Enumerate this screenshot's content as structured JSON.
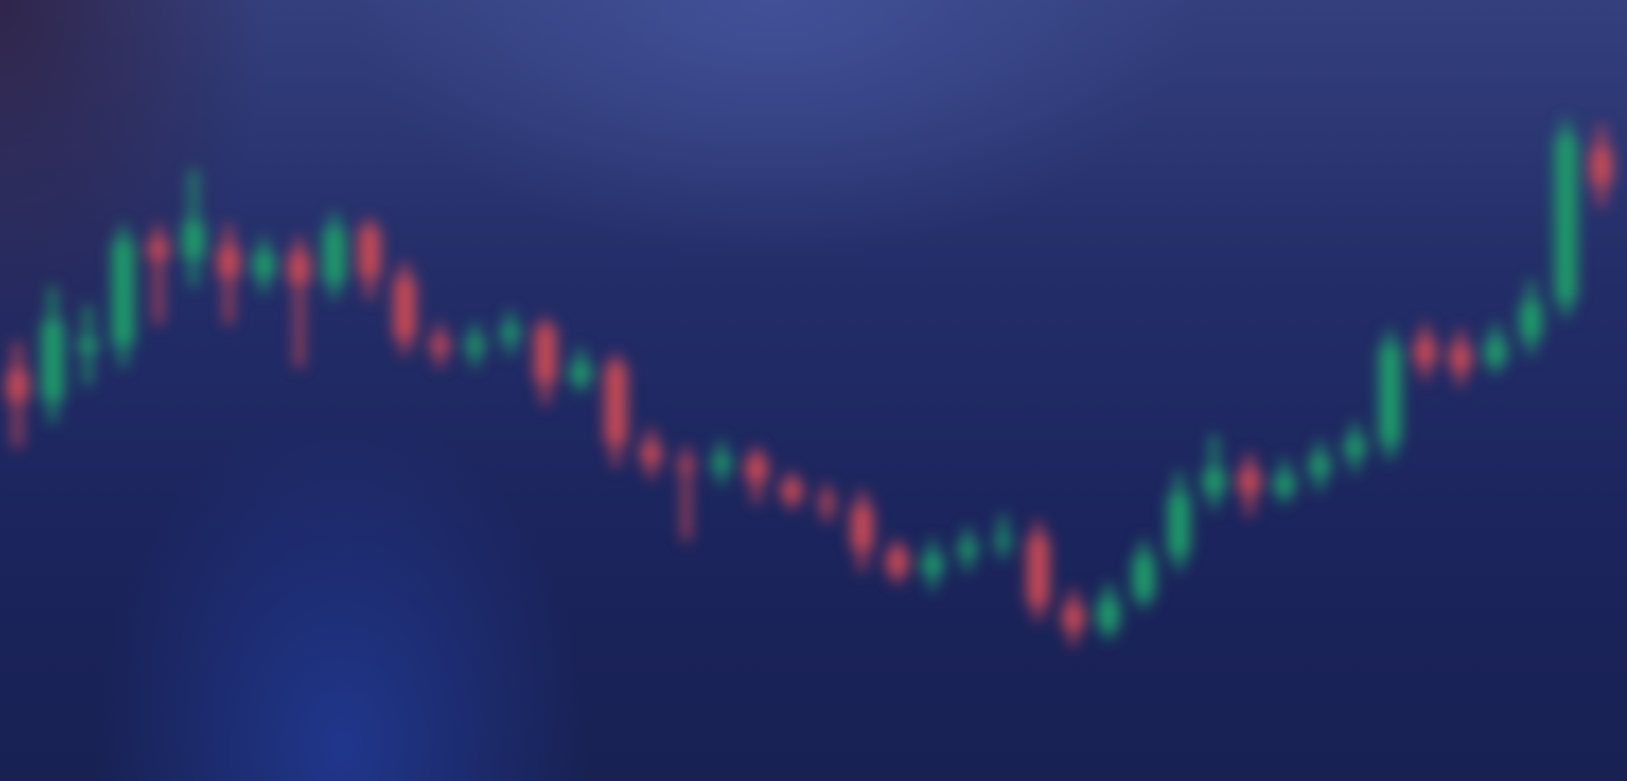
{
  "chart_data": {
    "type": "candlestick",
    "title": "",
    "xlabel": "",
    "ylabel": "",
    "grid": false,
    "legend": "none",
    "ylim": [
      0,
      100
    ],
    "up_color": "#1f9e6a",
    "down_color": "#c94a55",
    "background_color": "#1c2560",
    "candles": [
      {
        "x": 1,
        "open": 52,
        "close": 47,
        "high": 56,
        "low": 40
      },
      {
        "x": 2,
        "open": 47,
        "close": 60,
        "high": 65,
        "low": 44
      },
      {
        "x": 3,
        "open": 55,
        "close": 57,
        "high": 62,
        "low": 50
      },
      {
        "x": 4,
        "open": 56,
        "close": 73,
        "high": 75,
        "low": 53
      },
      {
        "x": 5,
        "open": 73,
        "close": 70,
        "high": 75,
        "low": 60
      },
      {
        "x": 6,
        "open": 70,
        "close": 76,
        "high": 84,
        "low": 66
      },
      {
        "x": 7,
        "open": 72,
        "close": 67,
        "high": 75,
        "low": 60
      },
      {
        "x": 8,
        "open": 67,
        "close": 71,
        "high": 73,
        "low": 65
      },
      {
        "x": 9,
        "open": 71,
        "close": 66,
        "high": 73,
        "low": 53
      },
      {
        "x": 10,
        "open": 66,
        "close": 75,
        "high": 77,
        "low": 64
      },
      {
        "x": 11,
        "open": 75,
        "close": 67,
        "high": 76,
        "low": 64
      },
      {
        "x": 12,
        "open": 67,
        "close": 57,
        "high": 69,
        "low": 55
      },
      {
        "x": 13,
        "open": 57,
        "close": 55,
        "high": 59,
        "low": 53
      },
      {
        "x": 14,
        "open": 55,
        "close": 57,
        "high": 59,
        "low": 53
      },
      {
        "x": 15,
        "open": 57,
        "close": 59,
        "high": 61,
        "low": 55
      },
      {
        "x": 16,
        "open": 59,
        "close": 50,
        "high": 60,
        "low": 47
      },
      {
        "x": 17,
        "open": 50,
        "close": 53,
        "high": 55,
        "low": 49
      },
      {
        "x": 18,
        "open": 53,
        "close": 40,
        "high": 54,
        "low": 37
      },
      {
        "x": 19,
        "open": 40,
        "close": 37,
        "high": 42,
        "low": 35
      },
      {
        "x": 20,
        "open": 37,
        "close": 36,
        "high": 39,
        "low": 25
      },
      {
        "x": 21,
        "open": 36,
        "close": 38,
        "high": 40,
        "low": 34
      },
      {
        "x": 22,
        "open": 38,
        "close": 34,
        "high": 39,
        "low": 31
      },
      {
        "x": 23,
        "open": 34,
        "close": 31,
        "high": 35,
        "low": 30
      },
      {
        "x": 24,
        "open": 31,
        "close": 30,
        "high": 33,
        "low": 28
      },
      {
        "x": 25,
        "open": 30,
        "close": 23,
        "high": 32,
        "low": 20
      },
      {
        "x": 26,
        "open": 23,
        "close": 19,
        "high": 24,
        "low": 18
      },
      {
        "x": 27,
        "open": 19,
        "close": 22,
        "high": 24,
        "low": 17
      },
      {
        "x": 28,
        "open": 22,
        "close": 24,
        "high": 26,
        "low": 20
      },
      {
        "x": 29,
        "open": 24,
        "close": 25,
        "high": 28,
        "low": 22
      },
      {
        "x": 30,
        "open": 25,
        "close": 14,
        "high": 27,
        "low": 12
      },
      {
        "x": 31,
        "open": 14,
        "close": 10,
        "high": 16,
        "low": 8
      },
      {
        "x": 32,
        "open": 10,
        "close": 15,
        "high": 17,
        "low": 9
      },
      {
        "x": 33,
        "open": 15,
        "close": 22,
        "high": 24,
        "low": 14
      },
      {
        "x": 34,
        "open": 22,
        "close": 32,
        "high": 35,
        "low": 20
      },
      {
        "x": 35,
        "open": 32,
        "close": 36,
        "high": 41,
        "low": 30
      },
      {
        "x": 36,
        "open": 36,
        "close": 32,
        "high": 38,
        "low": 29
      },
      {
        "x": 37,
        "open": 32,
        "close": 35,
        "high": 37,
        "low": 31
      },
      {
        "x": 38,
        "open": 35,
        "close": 38,
        "high": 40,
        "low": 33
      },
      {
        "x": 39,
        "open": 38,
        "close": 41,
        "high": 43,
        "low": 36
      },
      {
        "x": 40,
        "open": 40,
        "close": 56,
        "high": 58,
        "low": 38
      },
      {
        "x": 41,
        "open": 57,
        "close": 53,
        "high": 59,
        "low": 51
      },
      {
        "x": 42,
        "open": 56,
        "close": 52,
        "high": 58,
        "low": 50
      },
      {
        "x": 43,
        "open": 53,
        "close": 57,
        "high": 59,
        "low": 52
      },
      {
        "x": 44,
        "open": 57,
        "close": 63,
        "high": 66,
        "low": 55
      },
      {
        "x": 45,
        "open": 63,
        "close": 90,
        "high": 92,
        "low": 61
      },
      {
        "x": 46,
        "open": 88,
        "close": 82,
        "high": 91,
        "low": 79
      }
    ]
  }
}
